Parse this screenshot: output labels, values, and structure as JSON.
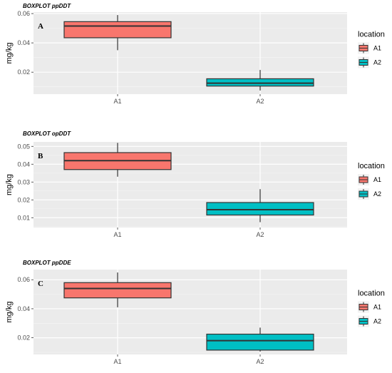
{
  "legend": {
    "title": "location",
    "entries": [
      {
        "label": "A1",
        "color": "#F8766D"
      },
      {
        "label": "A2",
        "color": "#00BFC4"
      }
    ]
  },
  "chart_data": [
    {
      "type": "boxplot",
      "title": "BOXPLOT ppDDT",
      "panel_label": "A",
      "xlabel": "",
      "ylabel": "mg/kg",
      "ylim": [
        0.005,
        0.061
      ],
      "yticks": [
        0.02,
        0.04,
        0.06
      ],
      "ytick_labels": [
        "0.02",
        "0.04",
        "0.06"
      ],
      "categories": [
        "A1",
        "A2"
      ],
      "boxes": [
        {
          "category": "A1",
          "min": 0.035,
          "q1": 0.0435,
          "median": 0.0515,
          "q3": 0.0545,
          "max": 0.059
        },
        {
          "category": "A2",
          "min": 0.0075,
          "q1": 0.0105,
          "median": 0.0125,
          "q3": 0.0155,
          "max": 0.0215
        }
      ],
      "grid": true,
      "legend_position": "right"
    },
    {
      "type": "boxplot",
      "title": "BOXPLOT opDDT",
      "panel_label": "B",
      "xlabel": "",
      "ylabel": "mg/kg",
      "ylim": [
        0.0045,
        0.0525
      ],
      "yticks": [
        0.01,
        0.02,
        0.03,
        0.04,
        0.05
      ],
      "ytick_labels": [
        "0.01",
        "0.02",
        "0.03",
        "0.04",
        "0.05"
      ],
      "categories": [
        "A1",
        "A2"
      ],
      "boxes": [
        {
          "category": "A1",
          "min": 0.033,
          "q1": 0.037,
          "median": 0.042,
          "q3": 0.0465,
          "max": 0.052
        },
        {
          "category": "A2",
          "min": 0.0075,
          "q1": 0.0115,
          "median": 0.0145,
          "q3": 0.0185,
          "max": 0.026
        }
      ],
      "grid": true,
      "legend_position": "right"
    },
    {
      "type": "boxplot",
      "title": "BOXPLOT ppDDE",
      "panel_label": "C",
      "xlabel": "",
      "ylabel": "mg/kg",
      "ylim": [
        0.0085,
        0.067
      ],
      "yticks": [
        0.02,
        0.04,
        0.06
      ],
      "ytick_labels": [
        "0.02",
        "0.04",
        "0.06"
      ],
      "categories": [
        "A1",
        "A2"
      ],
      "boxes": [
        {
          "category": "A1",
          "min": 0.041,
          "q1": 0.0475,
          "median": 0.054,
          "q3": 0.058,
          "max": 0.065
        },
        {
          "category": "A2",
          "min": 0.0105,
          "q1": 0.0115,
          "median": 0.018,
          "q3": 0.0225,
          "max": 0.027
        }
      ],
      "grid": true,
      "legend_position": "right"
    }
  ]
}
